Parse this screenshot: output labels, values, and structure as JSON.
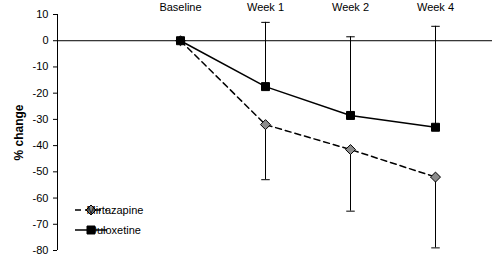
{
  "chart_data": {
    "type": "line",
    "categories": [
      "Baseline",
      "Week 1",
      "Week 2",
      "Week 4"
    ],
    "ylabel": "% change",
    "ylim": [
      -80,
      10
    ],
    "yticks": [
      -80,
      -70,
      -60,
      -50,
      -40,
      -30,
      -20,
      -10,
      0,
      10
    ],
    "grid": false,
    "legend": "lower left",
    "series": [
      {
        "name": "Mirtazapine",
        "color": "#8c8c8c",
        "marker": "diamond",
        "line_style": "dashed",
        "values": [
          0,
          -32,
          -41.5,
          -52
        ],
        "error_low": [
          null,
          -53,
          -65,
          -79
        ]
      },
      {
        "name": "Duloxetine",
        "color": "#000000",
        "marker": "square",
        "line_style": "solid",
        "values": [
          0,
          -17.5,
          -28.5,
          -33
        ],
        "error_high": [
          null,
          7,
          1.5,
          5.5
        ]
      }
    ]
  }
}
